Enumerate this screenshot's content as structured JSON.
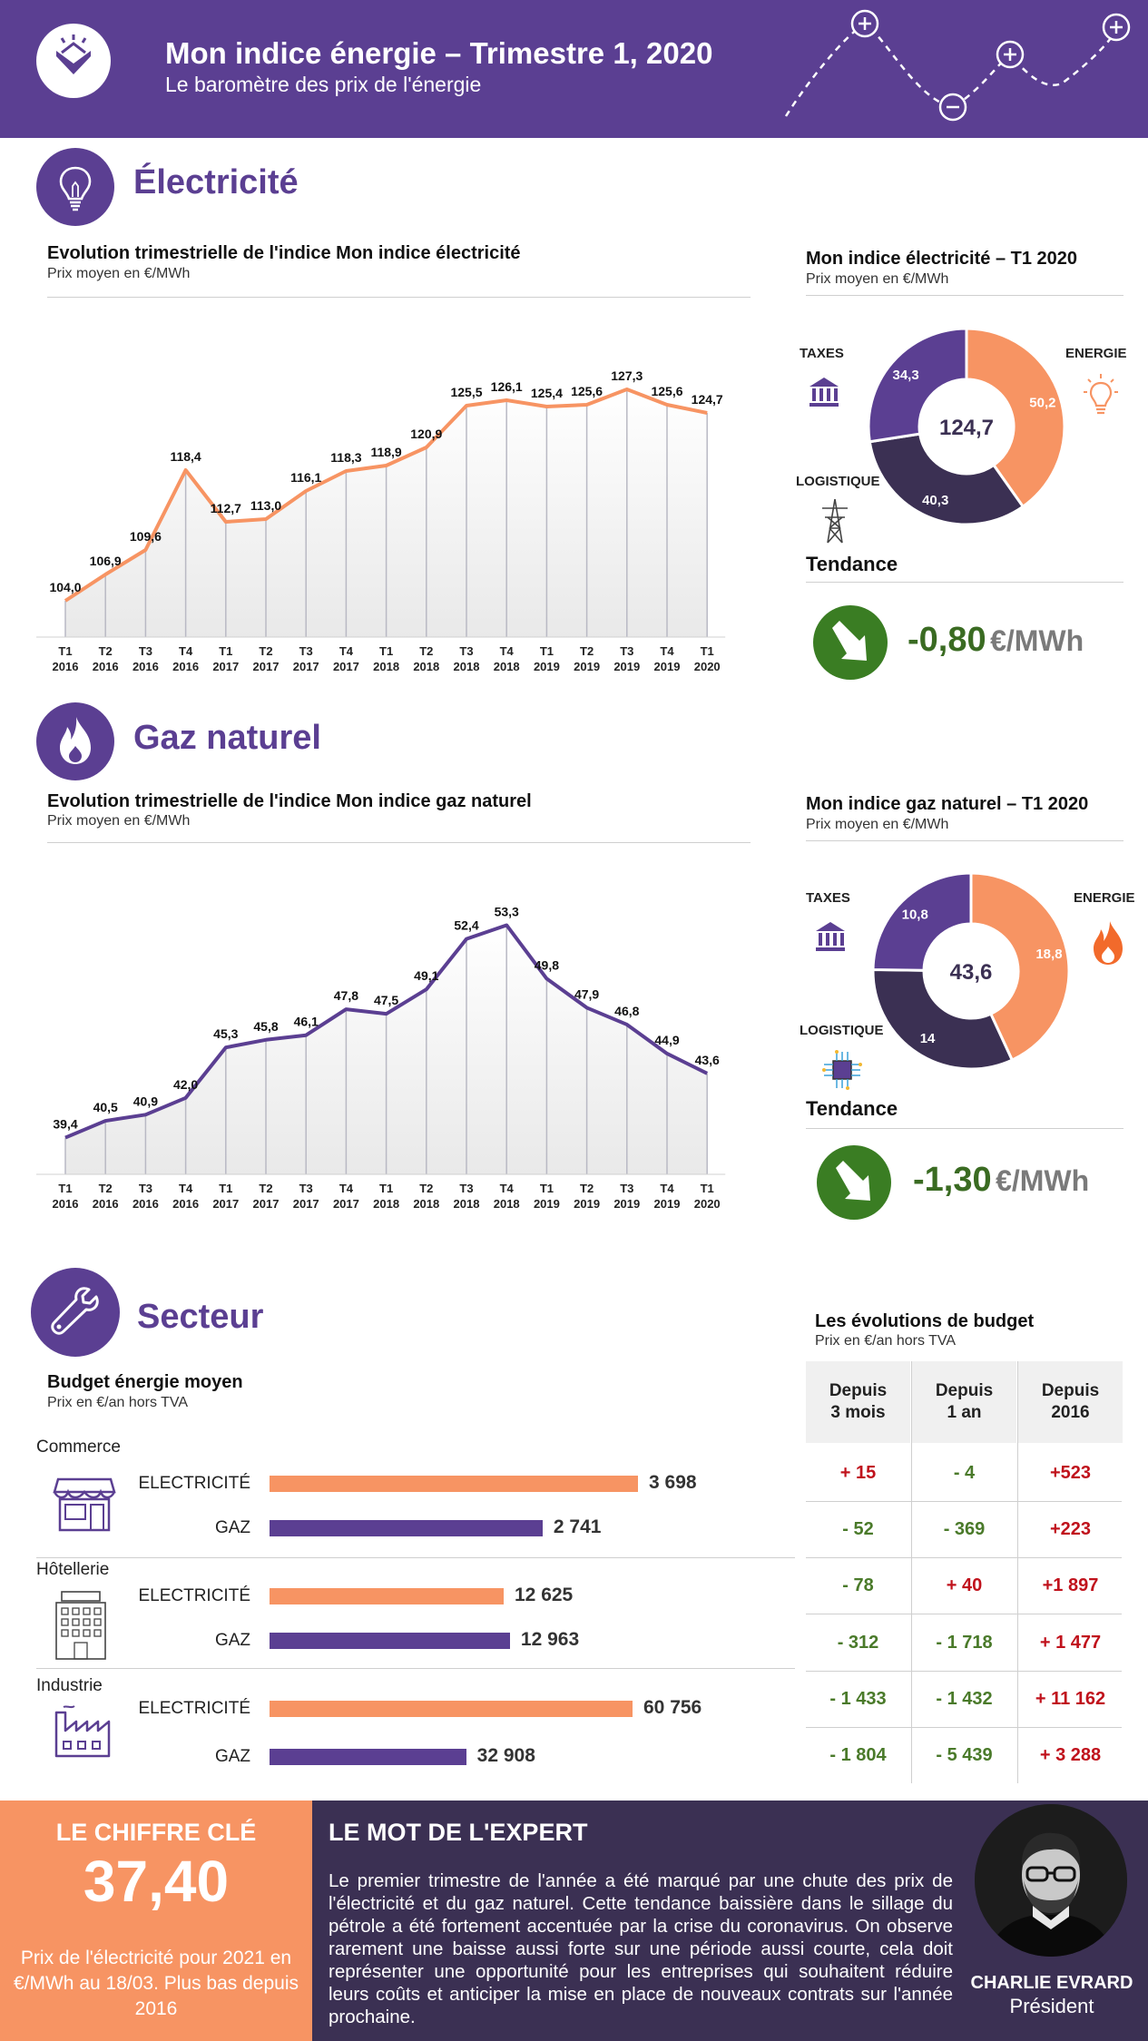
{
  "header": {
    "title": "Mon indice énergie – Trimestre 1, 2020",
    "subtitle": "Le baromètre des prix de l'énergie"
  },
  "colors": {
    "purple": "#5b3f92",
    "orange": "#f79463",
    "dark": "#3b3053",
    "green": "#3a6b22",
    "red": "#c0121c"
  },
  "electricite": {
    "section_title": "Électricité",
    "line_title": "Evolution trimestrielle de l'indice Mon indice électricité",
    "line_sub": "Prix moyen en €/MWh",
    "donut_title": "Mon indice électricité – T1 2020",
    "donut_sub": "Prix moyen en €/MWh",
    "tendance_label": "Tendance",
    "tendance_value": "-0,80",
    "tendance_unit": "€/MWh",
    "labels": {
      "taxes": "TAXES",
      "energie": "ENERGIE",
      "logistique": "LOGISTIQUE"
    }
  },
  "gaz": {
    "section_title": "Gaz naturel",
    "line_title": "Evolution trimestrielle de l'indice Mon indice gaz naturel",
    "line_sub": "Prix moyen en €/MWh",
    "donut_title": "Mon indice gaz naturel – T1 2020",
    "donut_sub": "Prix moyen en €/MWh",
    "tendance_label": "Tendance",
    "tendance_value": "-1,30",
    "tendance_unit": "€/MWh",
    "labels": {
      "taxes": "TAXES",
      "energie": "ENERGIE",
      "logistique": "LOGISTIQUE"
    }
  },
  "chart_data": [
    {
      "type": "line",
      "title": "Evolution trimestrielle de l'indice Mon indice électricité",
      "subtitle": "Prix moyen en €/MWh",
      "categories": [
        "T1 2016",
        "T2 2016",
        "T3 2016",
        "T4 2016",
        "T1 2017",
        "T2 2017",
        "T3 2017",
        "T4 2017",
        "T1 2018",
        "T2 2018",
        "T3 2018",
        "T4 2018",
        "T1 2019",
        "T2 2019",
        "T3 2019",
        "T4 2019",
        "T1 2020"
      ],
      "values": [
        104.0,
        106.9,
        109.6,
        118.4,
        112.7,
        113.0,
        116.1,
        118.3,
        118.9,
        120.9,
        125.5,
        126.1,
        125.4,
        125.6,
        127.3,
        125.6,
        124.7
      ],
      "value_labels": [
        "104,0",
        "106,9",
        "109,6",
        "118,4",
        "112,7",
        "113,0",
        "116,1",
        "118,3",
        "118,9",
        "120,9",
        "125,5",
        "126,1",
        "125,4",
        "125,6",
        "127,3",
        "125,6",
        "124,7"
      ],
      "ylim": [
        100,
        133
      ],
      "color": "#f79463"
    },
    {
      "type": "pie",
      "title": "Mon indice électricité – T1 2020",
      "subtitle": "Prix moyen en €/MWh",
      "center_label": "124,7",
      "slices": [
        {
          "name": "ENERGIE",
          "value": 50.2,
          "label": "50,2",
          "color": "#f79463"
        },
        {
          "name": "LOGISTIQUE",
          "value": 40.3,
          "label": "40,3",
          "color": "#3b3053"
        },
        {
          "name": "TAXES",
          "value": 34.3,
          "label": "34,3",
          "color": "#5b3f92"
        }
      ]
    },
    {
      "type": "line",
      "title": "Evolution trimestrielle de l'indice Mon indice gaz naturel",
      "subtitle": "Prix moyen en €/MWh",
      "categories": [
        "T1 2016",
        "T2 2016",
        "T3 2016",
        "T4 2016",
        "T1 2017",
        "T2 2017",
        "T3 2017",
        "T4 2017",
        "T1 2018",
        "T2 2018",
        "T3 2018",
        "T4 2018",
        "T1 2019",
        "T2 2019",
        "T3 2019",
        "T4 2019",
        "T1 2020"
      ],
      "values": [
        39.4,
        40.5,
        40.9,
        42.0,
        45.3,
        45.8,
        46.1,
        47.8,
        47.5,
        49.1,
        52.4,
        53.3,
        49.8,
        47.9,
        46.8,
        44.9,
        43.6
      ],
      "value_labels": [
        "39,4",
        "40,5",
        "40,9",
        "42,0",
        "45,3",
        "45,8",
        "46,1",
        "47,8",
        "47,5",
        "49,1",
        "52,4",
        "53,3",
        "49,8",
        "47,9",
        "46,8",
        "44,9",
        "43,6"
      ],
      "ylim": [
        37,
        56
      ],
      "color": "#5b3f92"
    },
    {
      "type": "pie",
      "title": "Mon indice gaz naturel – T1 2020",
      "subtitle": "Prix moyen en €/MWh",
      "center_label": "43,6",
      "slices": [
        {
          "name": "ENERGIE",
          "value": 18.8,
          "label": "18,8",
          "color": "#f79463"
        },
        {
          "name": "LOGISTIQUE",
          "value": 14,
          "label": "14",
          "color": "#3b3053"
        },
        {
          "name": "TAXES",
          "value": 10.8,
          "label": "10,8",
          "color": "#5b3f92"
        }
      ]
    },
    {
      "type": "bar",
      "title": "Budget énergie moyen",
      "subtitle": "Prix en €/an hors TVA",
      "groups": [
        {
          "name": "Commerce",
          "bars": [
            {
              "name": "ELECTRICITÉ",
              "value": 3698,
              "label": "3 698"
            },
            {
              "name": "GAZ",
              "value": 2741,
              "label": "2 741"
            }
          ]
        },
        {
          "name": "Hôtellerie",
          "bars": [
            {
              "name": "ELECTRICITÉ",
              "value": 12625,
              "label": "12 625"
            },
            {
              "name": "GAZ",
              "value": 12963,
              "label": "12 963"
            }
          ]
        },
        {
          "name": "Industrie",
          "bars": [
            {
              "name": "ELECTRICITÉ",
              "value": 60756,
              "label": "60 756"
            },
            {
              "name": "GAZ",
              "value": 32908,
              "label": "32 908"
            }
          ]
        }
      ]
    },
    {
      "type": "table",
      "title": "Les évolutions de budget",
      "subtitle": "Prix en €/an hors TVA",
      "columns": [
        "Depuis 3 mois",
        "Depuis 1 an",
        "Depuis 2016"
      ],
      "rows": [
        [
          "+ 15",
          "- 4",
          "+523"
        ],
        [
          "- 52",
          "- 369",
          "+223"
        ],
        [
          "- 78",
          "+ 40",
          "+1 897"
        ],
        [
          "- 312",
          "- 1 718",
          "+ 1 477"
        ],
        [
          "- 1 433",
          "- 1 432",
          "+ 11 162"
        ],
        [
          "- 1 804",
          "- 5 439",
          "+ 3 288"
        ]
      ]
    }
  ],
  "secteur": {
    "section_title": "Secteur",
    "budget_title": "Budget énergie moyen",
    "budget_sub": "Prix en €/an hors TVA",
    "evo_title": "Les évolutions de budget",
    "evo_sub": "Prix en €/an hors TVA",
    "col_headers": [
      "Depuis\n3 mois",
      "Depuis\n1 an",
      "Depuis\n2016"
    ],
    "bar_labels": [
      "ELECTRICITÉ",
      "GAZ"
    ]
  },
  "footer": {
    "key_title": "LE CHIFFRE CLÉ",
    "key_value": "37,40",
    "key_desc": "Prix de l'électricité pour 2021 en €/MWh au 18/03. Plus bas depuis 2016",
    "expert_title": "LE MOT DE L'EXPERT",
    "expert_text": "Le premier trimestre de l'année a été marqué par une chute des prix de l'électricité et du gaz naturel. Cette tendance baissière dans le sillage du pétrole a été fortement accentuée par la crise du coronavirus. On observe rarement une baisse aussi forte sur une période aussi courte, cela doit représenter une opportunité pour les entreprises qui souhaitent réduire leurs coûts et anticiper la mise en place de nouveaux contrats sur l'année prochaine.",
    "expert_name": "CHARLIE EVRARD",
    "expert_role": "Président"
  }
}
